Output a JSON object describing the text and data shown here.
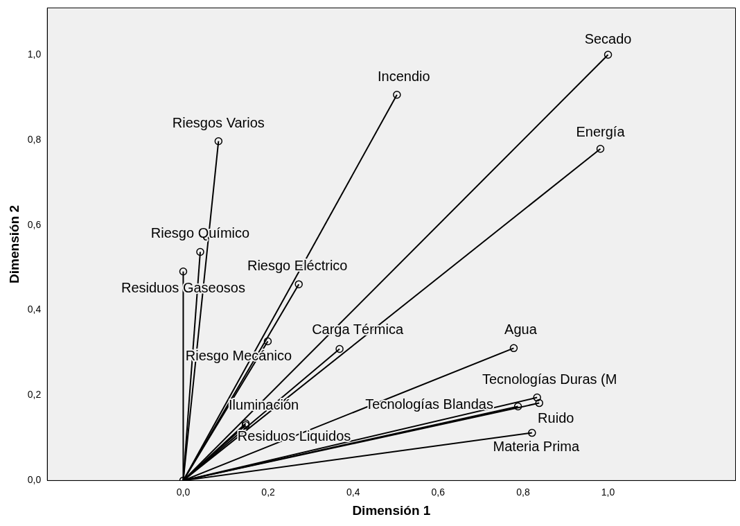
{
  "chart_data": {
    "type": "scatter",
    "xlabel": "Dimensión 1",
    "ylabel": "Dimensión 2",
    "xlim": [
      -0.32,
      1.3
    ],
    "ylim": [
      0,
      1.11
    ],
    "xticks": [
      {
        "value": 0,
        "label": "0,0"
      },
      {
        "value": 0.2,
        "label": "0,2"
      },
      {
        "value": 0.4,
        "label": "0,4"
      },
      {
        "value": 0.6,
        "label": "0,6"
      },
      {
        "value": 0.8,
        "label": "0,8"
      },
      {
        "value": 1,
        "label": "1,0"
      }
    ],
    "yticks": [
      {
        "value": 0,
        "label": "0,0"
      },
      {
        "value": 0.2,
        "label": "0,2"
      },
      {
        "value": 0.4,
        "label": "0,4"
      },
      {
        "value": 0.6,
        "label": "0,6"
      },
      {
        "value": 0.8,
        "label": "0,8"
      },
      {
        "value": 1,
        "label": "1,0"
      }
    ],
    "grid": false,
    "legend": false,
    "marker": "circle",
    "series": [
      {
        "type": "line",
        "color": "#000000",
        "marker": "none",
        "x": [
          0,
          1.0
        ],
        "values": [
          0,
          1.0
        ]
      },
      {
        "type": "line",
        "color": "#000000",
        "marker": "none",
        "x": [
          0,
          0.503
        ],
        "values": [
          0,
          0.906
        ]
      },
      {
        "type": "line",
        "color": "#000000",
        "marker": "none",
        "x": [
          0,
          0.982
        ],
        "values": [
          0,
          0.779
        ]
      },
      {
        "type": "line",
        "color": "#000000",
        "marker": "none",
        "x": [
          0,
          0.083
        ],
        "values": [
          0,
          0.797
        ]
      },
      {
        "type": "line",
        "color": "#000000",
        "marker": "none",
        "x": [
          0,
          0.04
        ],
        "values": [
          0,
          0.537
        ]
      },
      {
        "type": "line",
        "color": "#000000",
        "marker": "none",
        "x": [
          0,
          0.0
        ],
        "values": [
          0,
          0.491
        ]
      },
      {
        "type": "line",
        "color": "#000000",
        "marker": "none",
        "x": [
          0,
          0.272
        ],
        "values": [
          0,
          0.461
        ]
      },
      {
        "type": "line",
        "color": "#000000",
        "marker": "none",
        "x": [
          0,
          0.368
        ],
        "values": [
          0,
          0.309
        ]
      },
      {
        "type": "line",
        "color": "#000000",
        "marker": "none",
        "x": [
          0,
          0.199
        ],
        "values": [
          0,
          0.327
        ]
      },
      {
        "type": "line",
        "color": "#000000",
        "marker": "none",
        "x": [
          0,
          0.778
        ],
        "values": [
          0,
          0.311
        ]
      },
      {
        "type": "line",
        "color": "#000000",
        "marker": "none",
        "x": [
          0,
          0.833
        ],
        "values": [
          0,
          0.195
        ]
      },
      {
        "type": "line",
        "color": "#000000",
        "marker": "none",
        "x": [
          0,
          0.788
        ],
        "values": [
          0,
          0.174
        ]
      },
      {
        "type": "line",
        "color": "#000000",
        "marker": "none",
        "x": [
          0,
          0.838
        ],
        "values": [
          0,
          0.182
        ]
      },
      {
        "type": "line",
        "color": "#000000",
        "marker": "none",
        "x": [
          0,
          0.821
        ],
        "values": [
          0,
          0.112
        ]
      },
      {
        "type": "line",
        "color": "#000000",
        "marker": "none",
        "x": [
          0,
          0.147
        ],
        "values": [
          0,
          0.134
        ]
      },
      {
        "type": "line",
        "color": "#000000",
        "marker": "none",
        "x": [
          0,
          0.147
        ],
        "values": [
          0,
          0.13
        ]
      },
      {
        "type": "scatter",
        "color": "#000000",
        "x": [
          1.0,
          0.503,
          0.982,
          0.083,
          0.04,
          0.0,
          0.272,
          0.368,
          0.199,
          0.778,
          0.833,
          0.788,
          0.838,
          0.821,
          0.147,
          0.147,
          0
        ],
        "values": [
          1.0,
          0.906,
          0.779,
          0.797,
          0.537,
          0.491,
          0.461,
          0.309,
          0.327,
          0.311,
          0.195,
          0.174,
          0.182,
          0.112,
          0.134,
          0.13,
          0
        ]
      }
    ],
    "annotations": [
      {
        "text": "Secado",
        "x": 1.0,
        "y": 1.0
      },
      {
        "text": "Incendio",
        "x": 0.503,
        "y": 0.906
      },
      {
        "text": "Energía",
        "x": 0.982,
        "y": 0.779
      },
      {
        "text": "Riesgos Varios",
        "x": 0.083,
        "y": 0.797
      },
      {
        "text": "Riesgo Químico",
        "x": 0.04,
        "y": 0.537
      },
      {
        "text": "Residuos Gaseosos",
        "x": 0.0,
        "y": 0.491
      },
      {
        "text": "Riesgo Eléctrico",
        "x": 0.272,
        "y": 0.461
      },
      {
        "text": "Carga Térmica",
        "x": 0.368,
        "y": 0.309
      },
      {
        "text": "Riesgo Mecánico",
        "x": 0.199,
        "y": 0.327
      },
      {
        "text": "Agua",
        "x": 0.778,
        "y": 0.311
      },
      {
        "text": "Tecnologías Duras (M",
        "x": 0.833,
        "y": 0.195
      },
      {
        "text": "Tecnologías Blandas",
        "x": 0.788,
        "y": 0.174
      },
      {
        "text": "Ruido",
        "x": 0.838,
        "y": 0.182
      },
      {
        "text": "Materia Prima",
        "x": 0.821,
        "y": 0.112
      },
      {
        "text": "Iluminación",
        "x": 0.147,
        "y": 0.134
      },
      {
        "text": "Residuos Liquidos",
        "x": 0.147,
        "y": 0.13
      }
    ]
  }
}
